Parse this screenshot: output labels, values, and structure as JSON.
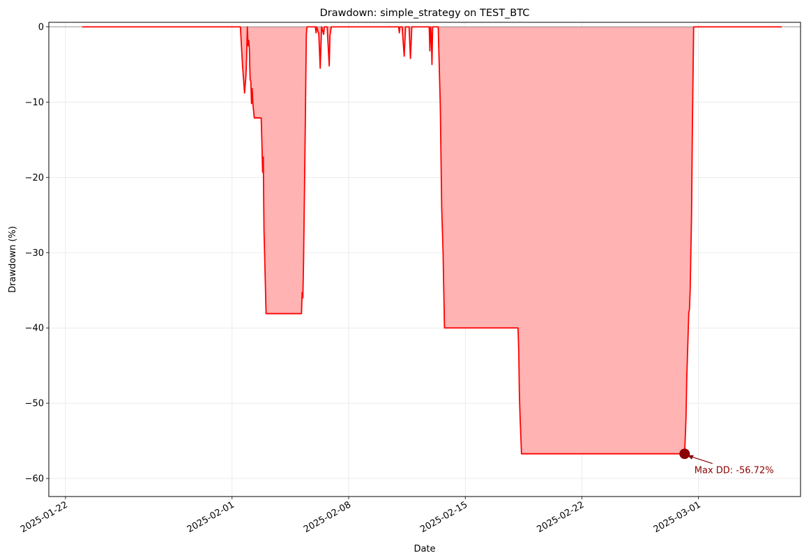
{
  "chart_data": {
    "type": "area",
    "title": "Drawdown: simple_strategy on TEST_BTC",
    "xlabel": "Date",
    "ylabel": "Drawdown (%)",
    "x_tick_labels": [
      "2025-01-22",
      "2025-02-01",
      "2025-02-08",
      "2025-02-15",
      "2025-02-22",
      "2025-03-01"
    ],
    "y_tick_labels": [
      "0",
      "−10",
      "−20",
      "−30",
      "−40",
      "−50",
      "−60"
    ],
    "y_ticks": [
      0,
      -10,
      -20,
      -30,
      -40,
      -50,
      -60
    ],
    "xlim": [
      "2025-01-21T00:00",
      "2025-03-07T03:00"
    ],
    "ylim": [
      -62.4,
      0.6
    ],
    "grid": true,
    "zero_line": true,
    "series": [
      {
        "color": "#ff0000",
        "fill_color": "#ffb3b3",
        "points": [
          [
            "2025-01-23T00:00",
            0
          ],
          [
            "2025-02-01T12:00",
            0
          ],
          [
            "2025-02-01T15:00",
            -5
          ],
          [
            "2025-02-01T18:00",
            -8.8
          ],
          [
            "2025-02-01T20:00",
            -6.5
          ],
          [
            "2025-02-01T21:00",
            -4
          ],
          [
            "2025-02-01T22:00",
            0
          ],
          [
            "2025-02-01T23:00",
            -2.5
          ],
          [
            "2025-02-02T00:00",
            -1.8
          ],
          [
            "2025-02-02T01:00",
            -3
          ],
          [
            "2025-02-02T02:00",
            -7
          ],
          [
            "2025-02-02T03:00",
            -7.2
          ],
          [
            "2025-02-02T04:00",
            -10.2
          ],
          [
            "2025-02-02T05:00",
            -8.2
          ],
          [
            "2025-02-02T06:00",
            -10.2
          ],
          [
            "2025-02-02T08:00",
            -12.1
          ],
          [
            "2025-02-02T18:00",
            -12.1
          ],
          [
            "2025-02-02T19:00",
            -15.5
          ],
          [
            "2025-02-02T20:00",
            -19.3
          ],
          [
            "2025-02-02T21:00",
            -17.3
          ],
          [
            "2025-02-02T22:00",
            -27
          ],
          [
            "2025-02-02T23:00",
            -30.5
          ],
          [
            "2025-02-03T01:00",
            -38.1
          ],
          [
            "2025-02-05T04:00",
            -38.1
          ],
          [
            "2025-02-05T05:00",
            -35.3
          ],
          [
            "2025-02-05T06:00",
            -36
          ],
          [
            "2025-02-05T07:00",
            -31.2
          ],
          [
            "2025-02-05T09:00",
            -17
          ],
          [
            "2025-02-05T11:00",
            -1
          ],
          [
            "2025-02-05T12:00",
            0
          ],
          [
            "2025-02-06T00:00",
            0
          ],
          [
            "2025-02-06T01:00",
            -0.8
          ],
          [
            "2025-02-06T02:00",
            0
          ],
          [
            "2025-02-06T05:00",
            -1
          ],
          [
            "2025-02-06T07:00",
            -5.5
          ],
          [
            "2025-02-06T09:00",
            0
          ],
          [
            "2025-02-06T12:00",
            -1
          ],
          [
            "2025-02-06T13:00",
            0
          ],
          [
            "2025-02-06T17:00",
            0
          ],
          [
            "2025-02-06T20:00",
            -5.2
          ],
          [
            "2025-02-06T21:00",
            -1.2
          ],
          [
            "2025-02-06T23:00",
            0
          ],
          [
            "2025-02-11T00:00",
            0
          ],
          [
            "2025-02-11T01:00",
            -0.8
          ],
          [
            "2025-02-11T02:00",
            0
          ],
          [
            "2025-02-11T05:00",
            0
          ],
          [
            "2025-02-11T08:00",
            -3.9
          ],
          [
            "2025-02-11T10:00",
            0
          ],
          [
            "2025-02-11T15:00",
            0
          ],
          [
            "2025-02-11T17:00",
            -4.2
          ],
          [
            "2025-02-11T19:00",
            0
          ],
          [
            "2025-02-12T20:00",
            0
          ],
          [
            "2025-02-12T21:00",
            -3.2
          ],
          [
            "2025-02-12T22:00",
            0
          ],
          [
            "2025-02-12T23:00",
            -1
          ],
          [
            "2025-02-13T00:00",
            -5
          ],
          [
            "2025-02-13T01:00",
            0
          ],
          [
            "2025-02-13T09:00",
            0
          ],
          [
            "2025-02-13T12:00",
            -10.5
          ],
          [
            "2025-02-13T14:00",
            -24
          ],
          [
            "2025-02-13T16:00",
            -30
          ],
          [
            "2025-02-13T18:00",
            -40
          ],
          [
            "2025-02-18T04:00",
            -40
          ],
          [
            "2025-02-18T05:00",
            -43
          ],
          [
            "2025-02-18T06:00",
            -49
          ],
          [
            "2025-02-18T07:00",
            -52
          ],
          [
            "2025-02-18T09:00",
            -56.72
          ],
          [
            "2025-02-28T04:00",
            -56.72
          ],
          [
            "2025-02-28T06:00",
            -52
          ],
          [
            "2025-02-28T07:00",
            -47
          ],
          [
            "2025-02-28T09:00",
            -41
          ],
          [
            "2025-02-28T10:00",
            -38
          ],
          [
            "2025-02-28T11:00",
            -37.5
          ],
          [
            "2025-02-28T12:00",
            -35
          ],
          [
            "2025-02-28T14:00",
            -25
          ],
          [
            "2025-02-28T15:00",
            -15
          ],
          [
            "2025-02-28T17:00",
            0
          ],
          [
            "2025-03-06T00:00",
            0
          ]
        ]
      }
    ],
    "max_drawdown": {
      "date": "2025-02-28T04:00",
      "value": -56.72,
      "label": "Max DD: -56.72%",
      "color": "#8b0000"
    }
  }
}
